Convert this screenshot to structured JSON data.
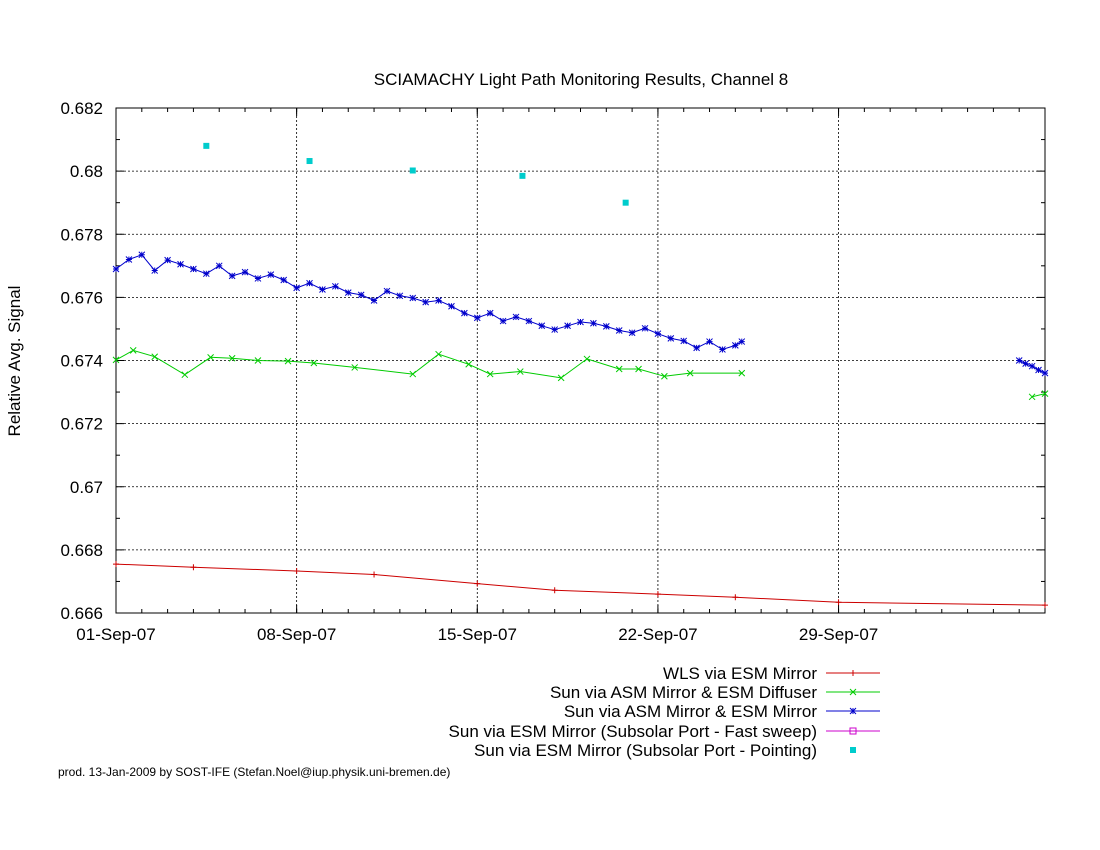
{
  "chart_data": {
    "type": "line",
    "title": "SCIAMACHY Light Path Monitoring Results, Channel 8",
    "xlabel": "",
    "ylabel": "Relative Avg. Signal",
    "x_unit": "date",
    "xlim": [
      "2007-09-01",
      "2007-10-07"
    ],
    "ylim": [
      0.666,
      0.682
    ],
    "x_ticks": [
      {
        "date": "2007-09-01",
        "label": "01-Sep-07"
      },
      {
        "date": "2007-09-08",
        "label": "08-Sep-07"
      },
      {
        "date": "2007-09-15",
        "label": "15-Sep-07"
      },
      {
        "date": "2007-09-22",
        "label": "22-Sep-07"
      },
      {
        "date": "2007-09-29",
        "label": "29-Sep-07"
      }
    ],
    "y_ticks": [
      {
        "value": 0.666,
        "label": "0.666"
      },
      {
        "value": 0.668,
        "label": "0.668"
      },
      {
        "value": 0.67,
        "label": "0.67"
      },
      {
        "value": 0.672,
        "label": "0.672"
      },
      {
        "value": 0.674,
        "label": "0.674"
      },
      {
        "value": 0.676,
        "label": "0.676"
      },
      {
        "value": 0.678,
        "label": "0.678"
      },
      {
        "value": 0.68,
        "label": "0.68"
      },
      {
        "value": 0.682,
        "label": "0.682"
      }
    ],
    "grid": true,
    "legend_position": "bottom-right",
    "series": [
      {
        "name": "WLS via ESM Mirror",
        "color": "#cc0000",
        "marker": "plus",
        "points": [
          [
            "2007-09-01",
            0.66755
          ],
          [
            "2007-09-04",
            0.66745
          ],
          [
            "2007-09-08",
            0.66733
          ],
          [
            "2007-09-11",
            0.66722
          ],
          [
            "2007-09-15",
            0.66693
          ],
          [
            "2007-09-18",
            0.66672
          ],
          [
            "2007-09-22",
            0.6666
          ],
          [
            "2007-09-25",
            0.6665
          ],
          [
            "2007-09-29",
            0.66634
          ],
          [
            "2007-10-07",
            0.66625
          ]
        ]
      },
      {
        "name": "Sun via ASM Mirror & ESM Diffuser",
        "color": "#00cc00",
        "marker": "cross",
        "points": [
          [
            "2007-09-01",
            0.67402
          ],
          [
            "2007-09-01 16:00",
            0.67432
          ],
          [
            "2007-09-02 12:00",
            0.67412
          ],
          [
            "2007-09-03 16:00",
            0.67355
          ],
          [
            "2007-09-04 16:00",
            0.6741
          ],
          [
            "2007-09-05 12:00",
            0.67407
          ],
          [
            "2007-09-06 12:00",
            0.674
          ],
          [
            "2007-09-07 16:00",
            0.67398
          ],
          [
            "2007-09-08 16:00",
            0.67392
          ],
          [
            "2007-09-10 06:00",
            0.67378
          ],
          [
            "2007-09-12 12:00",
            0.67357
          ],
          [
            "2007-09-13 12:00",
            0.6742
          ],
          [
            "2007-09-14 16:00",
            0.67388
          ],
          [
            "2007-09-15 12:00",
            0.67357
          ],
          [
            "2007-09-16 16:00",
            0.67365
          ],
          [
            "2007-09-18 06:00",
            0.67345
          ],
          [
            "2007-09-19 06:00",
            0.67405
          ],
          [
            "2007-09-20 12:00",
            0.67373
          ],
          [
            "2007-09-21 06:00",
            0.67373
          ],
          [
            "2007-09-22 06:00",
            0.6735
          ],
          [
            "2007-09-23 06:00",
            0.6736
          ],
          [
            "2007-09-25 06:00",
            0.6736
          ]
        ],
        "points_b": [
          [
            "2007-10-06 12:00",
            0.67285
          ],
          [
            "2007-10-07",
            0.67295
          ]
        ]
      },
      {
        "name": "Sun via ASM Mirror & ESM Mirror",
        "color": "#0000cc",
        "marker": "star",
        "points": [
          [
            "2007-09-01",
            0.6769
          ],
          [
            "2007-09-01 12:00",
            0.6772
          ],
          [
            "2007-09-02",
            0.67735
          ],
          [
            "2007-09-02 12:00",
            0.67685
          ],
          [
            "2007-09-03",
            0.67718
          ],
          [
            "2007-09-03 12:00",
            0.67705
          ],
          [
            "2007-09-04",
            0.6769
          ],
          [
            "2007-09-04 12:00",
            0.67675
          ],
          [
            "2007-09-05",
            0.677
          ],
          [
            "2007-09-05 12:00",
            0.67668
          ],
          [
            "2007-09-06",
            0.6768
          ],
          [
            "2007-09-06 12:00",
            0.6766
          ],
          [
            "2007-09-07",
            0.67672
          ],
          [
            "2007-09-07 12:00",
            0.67655
          ],
          [
            "2007-09-08",
            0.6763
          ],
          [
            "2007-09-08 12:00",
            0.67645
          ],
          [
            "2007-09-09",
            0.67625
          ],
          [
            "2007-09-09 12:00",
            0.67635
          ],
          [
            "2007-09-10",
            0.67615
          ],
          [
            "2007-09-10 12:00",
            0.67608
          ],
          [
            "2007-09-11",
            0.6759
          ],
          [
            "2007-09-11 12:00",
            0.6762
          ],
          [
            "2007-09-12",
            0.67605
          ],
          [
            "2007-09-12 12:00",
            0.67598
          ],
          [
            "2007-09-13",
            0.67585
          ],
          [
            "2007-09-13 12:00",
            0.6759
          ],
          [
            "2007-09-14",
            0.67572
          ],
          [
            "2007-09-14 12:00",
            0.6755
          ],
          [
            "2007-09-15",
            0.67535
          ],
          [
            "2007-09-15 12:00",
            0.6755
          ],
          [
            "2007-09-16",
            0.67525
          ],
          [
            "2007-09-16 12:00",
            0.67538
          ],
          [
            "2007-09-17",
            0.67525
          ],
          [
            "2007-09-17 12:00",
            0.6751
          ],
          [
            "2007-09-18",
            0.67498
          ],
          [
            "2007-09-18 12:00",
            0.6751
          ],
          [
            "2007-09-19",
            0.67522
          ],
          [
            "2007-09-19 12:00",
            0.67518
          ],
          [
            "2007-09-20",
            0.67508
          ],
          [
            "2007-09-20 12:00",
            0.67495
          ],
          [
            "2007-09-21",
            0.67488
          ],
          [
            "2007-09-21 12:00",
            0.67502
          ],
          [
            "2007-09-22",
            0.67485
          ],
          [
            "2007-09-22 12:00",
            0.6747
          ],
          [
            "2007-09-23",
            0.67462
          ],
          [
            "2007-09-23 12:00",
            0.6744
          ],
          [
            "2007-09-24",
            0.6746
          ],
          [
            "2007-09-24 12:00",
            0.67435
          ],
          [
            "2007-09-25",
            0.67448
          ],
          [
            "2007-09-25 06:00",
            0.6746
          ]
        ],
        "points_b": [
          [
            "2007-10-06",
            0.674
          ],
          [
            "2007-10-06 06:00",
            0.6739
          ],
          [
            "2007-10-06 12:00",
            0.67382
          ],
          [
            "2007-10-06 18:00",
            0.6737
          ],
          [
            "2007-10-07",
            0.6736
          ]
        ]
      },
      {
        "name": "Sun via ESM Mirror (Subsolar Port - Fast sweep)",
        "color": "#cc00cc",
        "marker": "square-open",
        "points": []
      },
      {
        "name": "Sun via ESM Mirror (Subsolar Port - Pointing)",
        "color": "#00cccc",
        "marker": "square-filled",
        "points": [
          [
            "2007-09-04 12:00",
            0.6808
          ],
          [
            "2007-09-08 12:00",
            0.68032
          ],
          [
            "2007-09-12 12:00",
            0.68002
          ],
          [
            "2007-09-16 18:00",
            0.67985
          ],
          [
            "2007-09-20 18:00",
            0.679
          ]
        ]
      }
    ]
  },
  "footer": "prod. 13-Jan-2009 by SOST-IFE (Stefan.Noel@iup.physik.uni-bremen.de)"
}
